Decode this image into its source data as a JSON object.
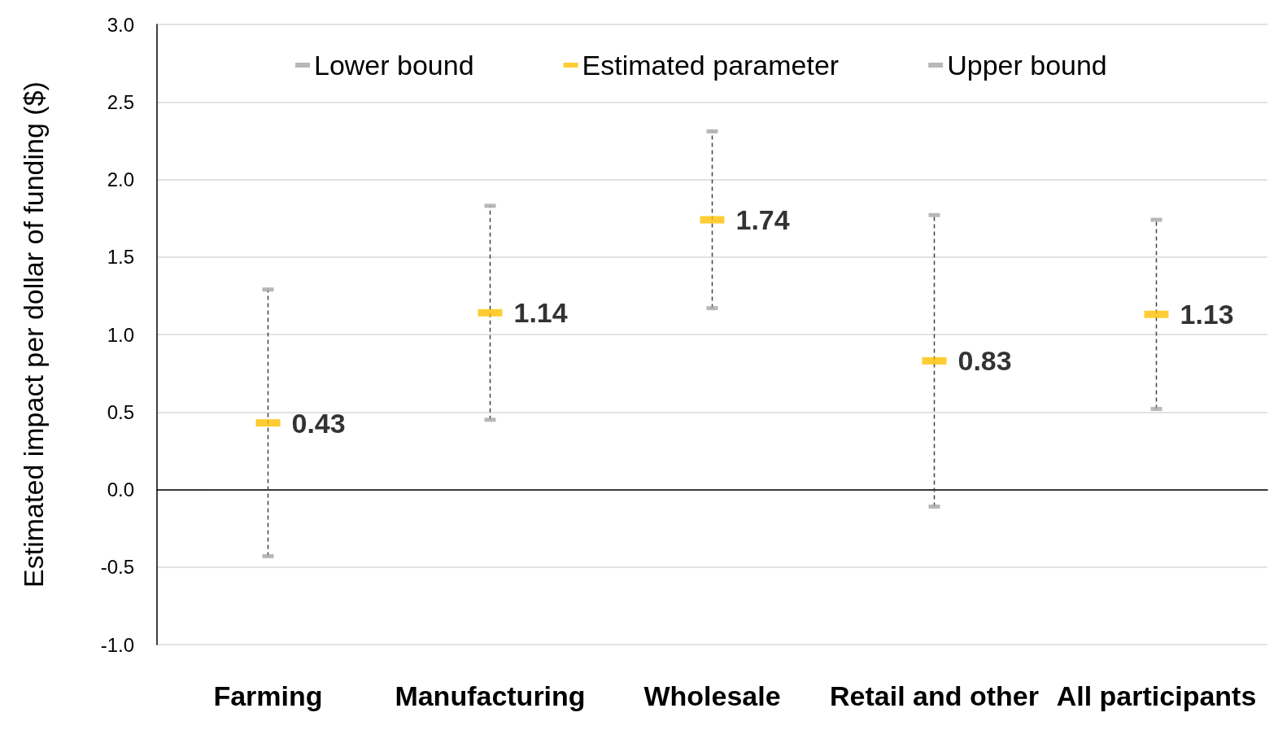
{
  "chart_data": {
    "type": "scatter",
    "ylabel": "Estimated impact per dollar of funding ($)",
    "categories": [
      "Farming",
      "Manufacturing",
      "Wholesale",
      "Retail and other",
      "All participants"
    ],
    "series": [
      {
        "name": "Lower bound",
        "color": "#a6a6a6",
        "values": [
          -0.43,
          0.45,
          1.17,
          -0.11,
          0.52
        ]
      },
      {
        "name": "Estimated parameter",
        "color": "#ffc000",
        "values": [
          0.43,
          1.14,
          1.74,
          0.83,
          1.13
        ],
        "value_labels": [
          "0.43",
          "1.14",
          "1.74",
          "0.83",
          "1.13"
        ]
      },
      {
        "name": "Upper bound",
        "color": "#a6a6a6",
        "values": [
          1.29,
          1.83,
          2.31,
          1.77,
          1.74
        ]
      }
    ],
    "ylim": [
      -1,
      3
    ],
    "yticks": [
      {
        "value": -1,
        "label": "-1.0"
      },
      {
        "value": -0.5,
        "label": "-0.5"
      },
      {
        "value": 0,
        "label": "0.0"
      },
      {
        "value": 0.5,
        "label": "0.5"
      },
      {
        "value": 1,
        "label": "1.0"
      },
      {
        "value": 1.5,
        "label": "1.5"
      },
      {
        "value": 2,
        "label": "2.0"
      },
      {
        "value": 2.5,
        "label": "2.5"
      },
      {
        "value": 3,
        "label": "3.0"
      }
    ],
    "grid": "y",
    "legend": "top",
    "marker": "square",
    "line_style": "dashed"
  }
}
